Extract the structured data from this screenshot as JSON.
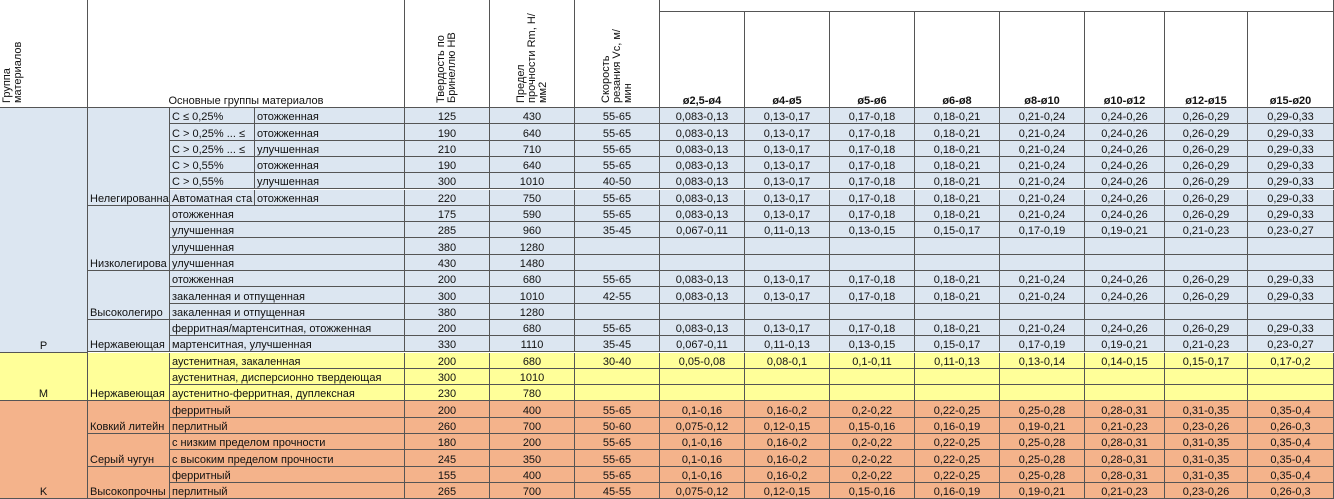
{
  "header": {
    "group": "Группа материалов",
    "main": "Основные группы материалов",
    "hb": "Твердость по Бринеллю HB",
    "rm": "Предел прочности Rm, Н/мм2",
    "vc": "Скорость резания Vc, м/мин",
    "diameters": [
      "ø2,5-ø4",
      "ø4-ø5",
      "ø5-ø6",
      "ø6-ø8",
      "ø8-ø10",
      "ø10-ø12",
      "ø12-ø15",
      "ø15-ø20"
    ]
  },
  "groups": [
    {
      "name": "P",
      "color": "#dce6f1",
      "subgroups": [
        {
          "name": "Нелегированна",
          "rows": [
            {
              "carbon": "C ≤ 0,25%",
              "condition": "отожженная",
              "hb": 125,
              "rm": 430,
              "vc": "55-65",
              "feeds": [
                "0,083-0,13",
                "0,13-0,17",
                "0,17-0,18",
                "0,18-0,21",
                "0,21-0,24",
                "0,24-0,26",
                "0,26-0,29",
                "0,29-0,33"
              ]
            },
            {
              "carbon": "C > 0,25% ... ≤",
              "condition": "отожженная",
              "hb": 190,
              "rm": 640,
              "vc": "55-65",
              "feeds": [
                "0,083-0,13",
                "0,13-0,17",
                "0,17-0,18",
                "0,18-0,21",
                "0,21-0,24",
                "0,24-0,26",
                "0,26-0,29",
                "0,29-0,33"
              ]
            },
            {
              "carbon": "C > 0,25% ... ≤",
              "condition": "улучшенная",
              "hb": 210,
              "rm": 710,
              "vc": "55-65",
              "feeds": [
                "0,083-0,13",
                "0,13-0,17",
                "0,17-0,18",
                "0,18-0,21",
                "0,21-0,24",
                "0,24-0,26",
                "0,26-0,29",
                "0,29-0,33"
              ]
            },
            {
              "carbon": "C > 0,55%",
              "condition": "отожженная",
              "hb": 190,
              "rm": 640,
              "vc": "55-65",
              "feeds": [
                "0,083-0,13",
                "0,13-0,17",
                "0,17-0,18",
                "0,18-0,21",
                "0,21-0,24",
                "0,24-0,26",
                "0,26-0,29",
                "0,29-0,33"
              ]
            },
            {
              "carbon": "C > 0,55%",
              "condition": "улучшенная",
              "hb": 300,
              "rm": 1010,
              "vc": "40-50",
              "feeds": [
                "0,083-0,13",
                "0,13-0,17",
                "0,17-0,18",
                "0,18-0,21",
                "0,21-0,24",
                "0,24-0,26",
                "0,26-0,29",
                "0,29-0,33"
              ]
            },
            {
              "carbon": "Автоматная ста",
              "condition": "отожженная",
              "hb": 220,
              "rm": 750,
              "vc": "55-65",
              "feeds": [
                "0,083-0,13",
                "0,13-0,17",
                "0,17-0,18",
                "0,18-0,21",
                "0,21-0,24",
                "0,24-0,26",
                "0,26-0,29",
                "0,29-0,33"
              ]
            }
          ]
        },
        {
          "name": "Низколегирова",
          "rows": [
            {
              "condition": "отожженная",
              "hb": 175,
              "rm": 590,
              "vc": "55-65",
              "feeds": [
                "0,083-0,13",
                "0,13-0,17",
                "0,17-0,18",
                "0,18-0,21",
                "0,21-0,24",
                "0,24-0,26",
                "0,26-0,29",
                "0,29-0,33"
              ]
            },
            {
              "condition": "улучшенная",
              "hb": 285,
              "rm": 960,
              "vc": "35-45",
              "feeds": [
                "0,067-0,11",
                "0,11-0,13",
                "0,13-0,15",
                "0,15-0,17",
                "0,17-0,19",
                "0,19-0,21",
                "0,21-0,23",
                "0,23-0,27"
              ]
            },
            {
              "condition": "улучшенная",
              "hb": 380,
              "rm": 1280
            },
            {
              "condition": "улучшенная",
              "hb": 430,
              "rm": 1480
            }
          ]
        },
        {
          "name": "Высоколегиро",
          "rows": [
            {
              "condition": "отожженная",
              "hb": 200,
              "rm": 680,
              "vc": "55-65",
              "feeds": [
                "0,083-0,13",
                "0,13-0,17",
                "0,17-0,18",
                "0,18-0,21",
                "0,21-0,24",
                "0,24-0,26",
                "0,26-0,29",
                "0,29-0,33"
              ]
            },
            {
              "condition": "закаленная и отпущенная",
              "hb": 300,
              "rm": 1010,
              "vc": "42-55",
              "feeds": [
                "0,083-0,13",
                "0,13-0,17",
                "0,17-0,18",
                "0,18-0,21",
                "0,21-0,24",
                "0,24-0,26",
                "0,26-0,29",
                "0,29-0,33"
              ]
            },
            {
              "condition": "закаленная и отпущенная",
              "hb": 380,
              "rm": 1280
            }
          ]
        },
        {
          "name": "Нержавеющая",
          "rows": [
            {
              "condition": "ферритная/мартенситная, отожженная",
              "hb": 200,
              "rm": 680,
              "vc": "55-65",
              "feeds": [
                "0,083-0,13",
                "0,13-0,17",
                "0,17-0,18",
                "0,18-0,21",
                "0,21-0,24",
                "0,24-0,26",
                "0,26-0,29",
                "0,29-0,33"
              ]
            },
            {
              "condition": "мартенситная, улучшенная",
              "hb": 330,
              "rm": 1110,
              "vc": "35-45",
              "feeds": [
                "0,067-0,11",
                "0,11-0,13",
                "0,13-0,15",
                "0,15-0,17",
                "0,17-0,19",
                "0,19-0,21",
                "0,21-0,23",
                "0,23-0,27"
              ]
            }
          ]
        }
      ]
    },
    {
      "name": "M",
      "color": "#ffff99",
      "subgroups": [
        {
          "name": "Нержавеющая",
          "rows": [
            {
              "condition": "аустенитная, закаленная",
              "hb": 200,
              "rm": 680,
              "vc": "30-40",
              "feeds": [
                "0,05-0,08",
                "0,08-0,1",
                "0,1-0,11",
                "0,11-0,13",
                "0,13-0,14",
                "0,14-0,15",
                "0,15-0,17",
                "0,17-0,2"
              ]
            },
            {
              "condition": "аустенитная, дисперсионно твердеющая",
              "hb": 300,
              "rm": 1010
            },
            {
              "condition": "аустенитно-ферритная, дуплексная",
              "hb": 230,
              "rm": 780
            }
          ]
        }
      ]
    },
    {
      "name": "K",
      "color": "#f4b38b",
      "subgroups": [
        {
          "name": "Ковкий литейн",
          "rows": [
            {
              "condition": "ферритный",
              "hb": 200,
              "rm": 400,
              "vc": "55-65",
              "feeds": [
                "0,1-0,16",
                "0,16-0,2",
                "0,2-0,22",
                "0,22-0,25",
                "0,25-0,28",
                "0,28-0,31",
                "0,31-0,35",
                "0,35-0,4"
              ]
            },
            {
              "condition": "перлитный",
              "hb": 260,
              "rm": 700,
              "vc": "50-60",
              "feeds": [
                "0,075-0,12",
                "0,12-0,15",
                "0,15-0,16",
                "0,16-0,19",
                "0,19-0,21",
                "0,21-0,23",
                "0,23-0,26",
                "0,26-0,3"
              ]
            }
          ]
        },
        {
          "name": "Серый чугун",
          "rows": [
            {
              "condition": "с низким пределом прочности",
              "hb": 180,
              "rm": 200,
              "vc": "55-65",
              "feeds": [
                "0,1-0,16",
                "0,16-0,2",
                "0,2-0,22",
                "0,22-0,25",
                "0,25-0,28",
                "0,28-0,31",
                "0,31-0,35",
                "0,35-0,4"
              ]
            },
            {
              "condition": "с высоким пределом прочности",
              "hb": 245,
              "rm": 350,
              "vc": "55-65",
              "feeds": [
                "0,1-0,16",
                "0,16-0,2",
                "0,2-0,22",
                "0,22-0,25",
                "0,25-0,28",
                "0,28-0,31",
                "0,31-0,35",
                "0,35-0,4"
              ]
            }
          ]
        },
        {
          "name": "Высокопрочны",
          "rows": [
            {
              "condition": "ферритный",
              "hb": 155,
              "rm": 400,
              "vc": "55-65",
              "feeds": [
                "0,1-0,16",
                "0,16-0,2",
                "0,2-0,22",
                "0,22-0,25",
                "0,25-0,28",
                "0,28-0,31",
                "0,31-0,35",
                "0,35-0,4"
              ]
            },
            {
              "condition": "перлитный",
              "hb": 265,
              "rm": 700,
              "vc": "45-55",
              "feeds": [
                "0,075-0,12",
                "0,12-0,15",
                "0,15-0,16",
                "0,16-0,19",
                "0,19-0,21",
                "0,21-0,23",
                "0,23-0,26",
                "0,26-0,3"
              ]
            }
          ]
        }
      ]
    }
  ]
}
